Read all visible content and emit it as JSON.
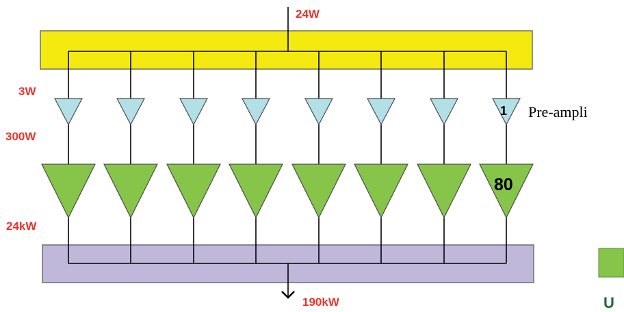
{
  "colors": {
    "splitter_bar": "#f5ea10",
    "combiner_bar": "#bfb8db",
    "preamp": "#b3dfe6",
    "main_amp": "#86c44a",
    "power_label": "#e8332a",
    "legend_text": "#1e6a3c"
  },
  "labels": {
    "input_power": "24W",
    "preamp_input_power": "3W",
    "preamp_output_power": "300W",
    "amp_output_power": "24kW",
    "total_output_power": "190kW",
    "preamp_index": "1",
    "amp_index": "80",
    "preamp_caption": "Pre-ampli",
    "legend_text_visible": "U"
  },
  "channel_count": 8
}
